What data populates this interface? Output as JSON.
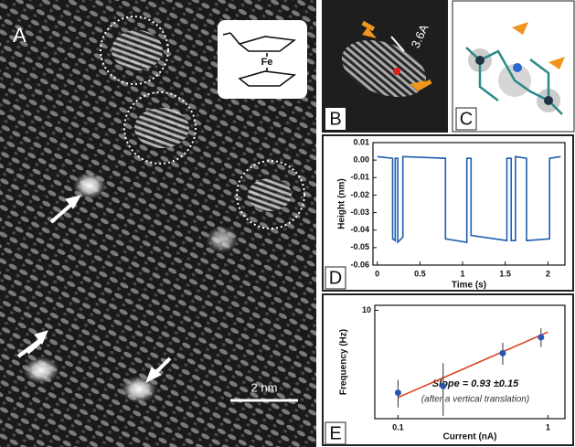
{
  "labels": [
    "A",
    "B",
    "C",
    "D",
    "E"
  ],
  "scale_bar": "2 nm",
  "inset_atom": "Fe",
  "distance": "3.6A",
  "chart_data": [
    {
      "type": "line",
      "x_label": "Time (s)",
      "y_label": "Height (nm)",
      "color": "#1f5fb0",
      "x": [
        0,
        0.18,
        0.18,
        0.21,
        0.21,
        0.24,
        0.24,
        0.3,
        0.3,
        0.8,
        0.8,
        1.05,
        1.05,
        1.1,
        1.1,
        1.52,
        1.52,
        1.57,
        1.57,
        1.62,
        1.62,
        1.75,
        1.75,
        2.02,
        2.02,
        2.15
      ],
      "values": [
        0.002,
        0.001,
        -0.045,
        -0.046,
        0.001,
        0.001,
        -0.047,
        -0.044,
        0.002,
        0.001,
        -0.045,
        -0.047,
        0.001,
        0.001,
        -0.043,
        -0.046,
        0.001,
        0.001,
        -0.046,
        -0.046,
        0.002,
        0.001,
        -0.046,
        -0.045,
        0.001,
        0.002
      ],
      "xlim": [
        -0.05,
        2.2
      ],
      "ylim": [
        -0.06,
        0.01
      ],
      "xticks": [
        0,
        0.5,
        1,
        1.5,
        2
      ],
      "yticks": [
        0.01,
        {
          "value": 0,
          "label": "0.00"
        },
        -0.01,
        -0.02,
        -0.03,
        -0.04,
        -0.05,
        -0.06
      ]
    },
    {
      "type": "scatter",
      "x_label": "Current (nA)",
      "y_label": "Frequency (Hz)",
      "color": "#2a56b8",
      "x": [
        0.1,
        0.2,
        0.5,
        0.9
      ],
      "values": [
        4.5,
        4.8,
        6.6,
        7.7
      ],
      "errors": [
        0.6,
        1.2,
        0.7,
        0.7
      ],
      "fit": {
        "x": [
          0.1,
          1
        ],
        "values": [
          4.3,
          8.1
        ],
        "color": "#e04020"
      },
      "xlog": true,
      "ylog": true,
      "xlim": [
        0.07,
        1.3
      ],
      "ylim": [
        3.5,
        10.5
      ],
      "xticks": [
        0.1,
        1
      ],
      "yticks": [
        10
      ],
      "annotations": [
        "Slope = 0.93 ±0.15",
        "(after a vertical translation)"
      ]
    }
  ]
}
